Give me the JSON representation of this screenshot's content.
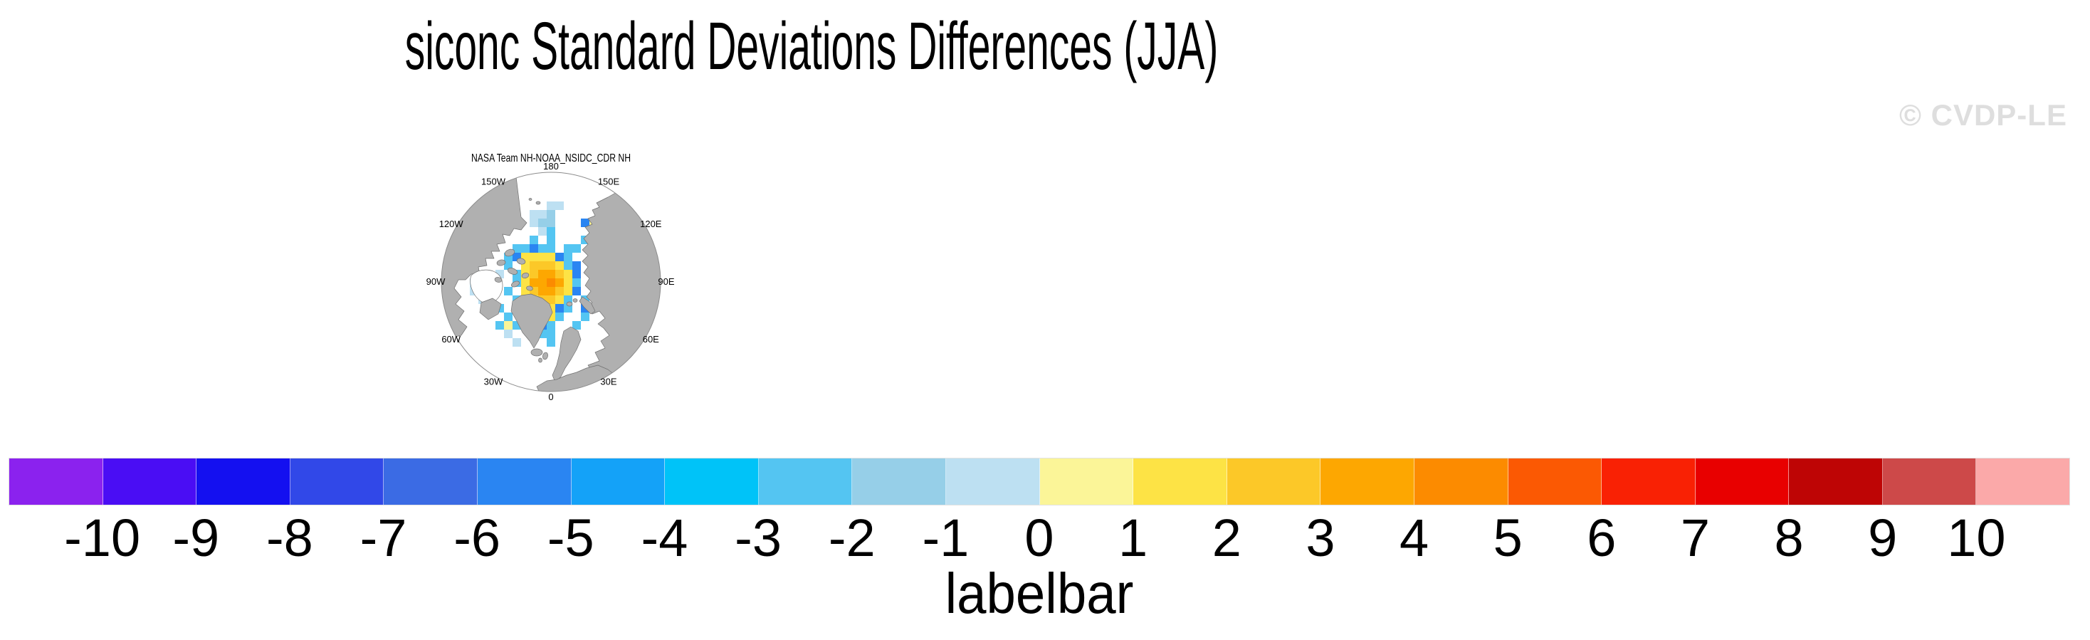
{
  "title": "siconc Standard Deviations Differences (JJA)",
  "watermark": "© CVDP-LE",
  "panel": {
    "title": "NASA Team NH-NOAA_NSIDC_CDR NH",
    "lon_labels": [
      {
        "label": "180",
        "angle": 0
      },
      {
        "label": "150E",
        "angle": 30
      },
      {
        "label": "120E",
        "angle": 60
      },
      {
        "label": "90E",
        "angle": 90
      },
      {
        "label": "60E",
        "angle": 120
      },
      {
        "label": "30E",
        "angle": 150
      },
      {
        "label": "0",
        "angle": 180
      },
      {
        "label": "30W",
        "angle": 210
      },
      {
        "label": "60W",
        "angle": 240
      },
      {
        "label": "90W",
        "angle": 270
      },
      {
        "label": "120W",
        "angle": 300
      },
      {
        "label": "150W",
        "angle": 330
      }
    ]
  },
  "labelbar": {
    "caption": "labelbar",
    "ticks": [
      "-10",
      "-9",
      "-8",
      "-7",
      "-6",
      "-5",
      "-4",
      "-3",
      "-2",
      "-1",
      "0",
      "1",
      "2",
      "3",
      "4",
      "5",
      "6",
      "7",
      "8",
      "9",
      "10"
    ],
    "colors": [
      "#8B22EE",
      "#4A0DF4",
      "#1410F0",
      "#3148E8",
      "#3B6BE4",
      "#2A85F2",
      "#14A2F8",
      "#00C3F8",
      "#54C5F2",
      "#96CFE8",
      "#BDE0F2",
      "#FBF598",
      "#FDE345",
      "#FCC828",
      "#FDA701",
      "#FC8B00",
      "#FB5903",
      "#F92104",
      "#E80000",
      "#BE0505",
      "#CD4949",
      "#FBA9A9"
    ]
  },
  "chart_data": {
    "type": "heatmap",
    "title": "siconc Standard Deviations Differences (JJA)",
    "variable": "siconc",
    "season": "JJA",
    "panel_title": "NASA Team NH-NOAA_NSIDC_CDR NH",
    "projection": "north polar stereographic",
    "land_color": "#B0B0B0",
    "ocean_color": "#FFFFFF",
    "colorbar": {
      "label": "labelbar",
      "tick_values": [
        -10,
        -9,
        -8,
        -7,
        -6,
        -5,
        -4,
        -3,
        -2,
        -1,
        0,
        1,
        2,
        3,
        4,
        5,
        6,
        7,
        8,
        9,
        10
      ],
      "colors": [
        "#8B22EE",
        "#4A0DF4",
        "#1410F0",
        "#3148E8",
        "#3B6BE4",
        "#2A85F2",
        "#14A2F8",
        "#00C3F8",
        "#54C5F2",
        "#96CFE8",
        "#BDE0F2",
        "#FBF598",
        "#FDE345",
        "#FCC828",
        "#FDA701",
        "#FC8B00",
        "#FB5903",
        "#F92104",
        "#E80000",
        "#BE0505",
        "#CD4949",
        "#FBA9A9"
      ],
      "n_boxes": 22
    },
    "map_cells": {
      "cell_size": 12,
      "origin": [
        76,
        83
      ],
      "palette": {
        "p": "#BDE0F2",
        "l": "#96CFE8",
        "s": "#54C5F2",
        "b": "#2A85F2",
        "y": "#FBF598",
        "Y": "#FDE345",
        "g": "#FCC828",
        "o": "#FDA701",
        "O": "#FC8B00"
      },
      "rows": [
        ".........pp.........",
        ".......ppl..........",
        ".......pll...by.....",
        "........ps....b.....",
        ".......s.s...s......",
        ".....ssbss.ss.......",
        "....sbYYYYbs........",
        "....s.YgggYsb.......",
        "...p.sYgoogYb.......",
        "ppp..sYooOoYs.......",
        "ppp.s.YgoogYb.......",
        ".pp..s.YggYs.s......",
        "...s.l.sYYbs.b......",
        "....s.s.bYs..s......",
        "...sys..bs..s.......",
        "....p...ss..........",
        ".....p...s.........."
      ]
    }
  }
}
